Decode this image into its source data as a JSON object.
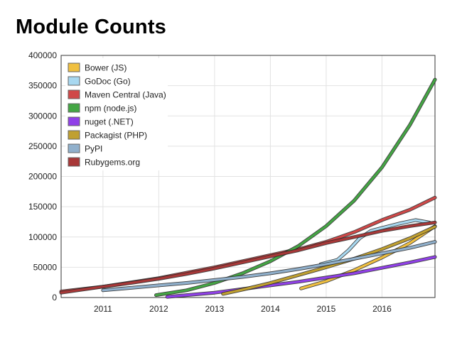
{
  "page": {
    "title": "Module Counts"
  },
  "chart_data": {
    "type": "line",
    "title": "Module Counts",
    "xlabel": "",
    "ylabel": "",
    "xlim": [
      2010.25,
      2016.95
    ],
    "ylim": [
      0,
      400000
    ],
    "x_ticks": [
      "2011",
      "2012",
      "2013",
      "2014",
      "2015",
      "2016"
    ],
    "y_ticks": [
      "0",
      "50000",
      "100000",
      "150000",
      "200000",
      "250000",
      "300000",
      "350000",
      "400000"
    ],
    "grid": true,
    "legend_position": "top-left",
    "series": [
      {
        "name": "Bower (JS)",
        "color": "#f0c040",
        "points": [
          [
            2014.55,
            15000
          ],
          [
            2015.0,
            27000
          ],
          [
            2015.5,
            45000
          ],
          [
            2016.0,
            66000
          ],
          [
            2016.5,
            90000
          ],
          [
            2016.95,
            118000
          ]
        ]
      },
      {
        "name": "GoDoc (Go)",
        "color": "#a8d8f0",
        "points": [
          [
            2014.9,
            55000
          ],
          [
            2015.2,
            62000
          ],
          [
            2015.4,
            78000
          ],
          [
            2015.6,
            98000
          ],
          [
            2015.8,
            110000
          ],
          [
            2016.0,
            115000
          ],
          [
            2016.3,
            122000
          ],
          [
            2016.6,
            128000
          ],
          [
            2016.85,
            124000
          ]
        ]
      },
      {
        "name": "Maven Central (Java)",
        "color": "#d04848",
        "points": [
          [
            2010.25,
            10000
          ],
          [
            2011.0,
            18000
          ],
          [
            2012.0,
            32000
          ],
          [
            2013.0,
            50000
          ],
          [
            2014.0,
            70000
          ],
          [
            2014.6,
            82000
          ],
          [
            2015.0,
            92000
          ],
          [
            2015.5,
            108000
          ],
          [
            2016.0,
            128000
          ],
          [
            2016.5,
            145000
          ],
          [
            2016.95,
            165000
          ]
        ]
      },
      {
        "name": "npm (node.js)",
        "color": "#44a644",
        "points": [
          [
            2011.95,
            4000
          ],
          [
            2012.5,
            12000
          ],
          [
            2013.0,
            24000
          ],
          [
            2013.5,
            40000
          ],
          [
            2014.0,
            60000
          ],
          [
            2014.5,
            85000
          ],
          [
            2015.0,
            118000
          ],
          [
            2015.5,
            160000
          ],
          [
            2016.0,
            215000
          ],
          [
            2016.5,
            285000
          ],
          [
            2016.95,
            360000
          ]
        ]
      },
      {
        "name": "nuget (.NET)",
        "color": "#9040e8",
        "points": [
          [
            2012.15,
            1000
          ],
          [
            2012.5,
            4000
          ],
          [
            2013.0,
            8000
          ],
          [
            2013.5,
            14000
          ],
          [
            2014.0,
            20000
          ],
          [
            2014.5,
            26000
          ],
          [
            2015.0,
            33000
          ],
          [
            2015.5,
            40000
          ],
          [
            2016.0,
            49000
          ],
          [
            2016.5,
            58000
          ],
          [
            2016.95,
            67000
          ]
        ]
      },
      {
        "name": "Packagist (PHP)",
        "color": "#c0a030",
        "points": [
          [
            2013.15,
            6000
          ],
          [
            2013.5,
            13000
          ],
          [
            2014.0,
            24000
          ],
          [
            2014.5,
            37000
          ],
          [
            2015.0,
            50000
          ],
          [
            2015.5,
            64000
          ],
          [
            2016.0,
            80000
          ],
          [
            2016.5,
            98000
          ],
          [
            2016.95,
            117000
          ]
        ]
      },
      {
        "name": "PyPI",
        "color": "#90b0cc",
        "points": [
          [
            2011.0,
            12000
          ],
          [
            2011.5,
            16000
          ],
          [
            2012.0,
            20000
          ],
          [
            2012.5,
            24000
          ],
          [
            2013.0,
            29000
          ],
          [
            2013.5,
            34000
          ],
          [
            2014.0,
            40000
          ],
          [
            2014.5,
            47000
          ],
          [
            2015.0,
            55000
          ],
          [
            2015.5,
            64000
          ],
          [
            2016.0,
            73000
          ],
          [
            2016.5,
            82000
          ],
          [
            2016.95,
            92000
          ]
        ]
      },
      {
        "name": "Rubygems.org",
        "color": "#a83838",
        "points": [
          [
            2010.25,
            8000
          ],
          [
            2011.0,
            18000
          ],
          [
            2011.5,
            24000
          ],
          [
            2012.0,
            31000
          ],
          [
            2012.5,
            39000
          ],
          [
            2013.0,
            48000
          ],
          [
            2013.5,
            58000
          ],
          [
            2014.0,
            68000
          ],
          [
            2014.5,
            78000
          ],
          [
            2015.0,
            90000
          ],
          [
            2015.5,
            100000
          ],
          [
            2016.0,
            110000
          ],
          [
            2016.5,
            118000
          ],
          [
            2016.95,
            124000
          ]
        ]
      }
    ]
  }
}
